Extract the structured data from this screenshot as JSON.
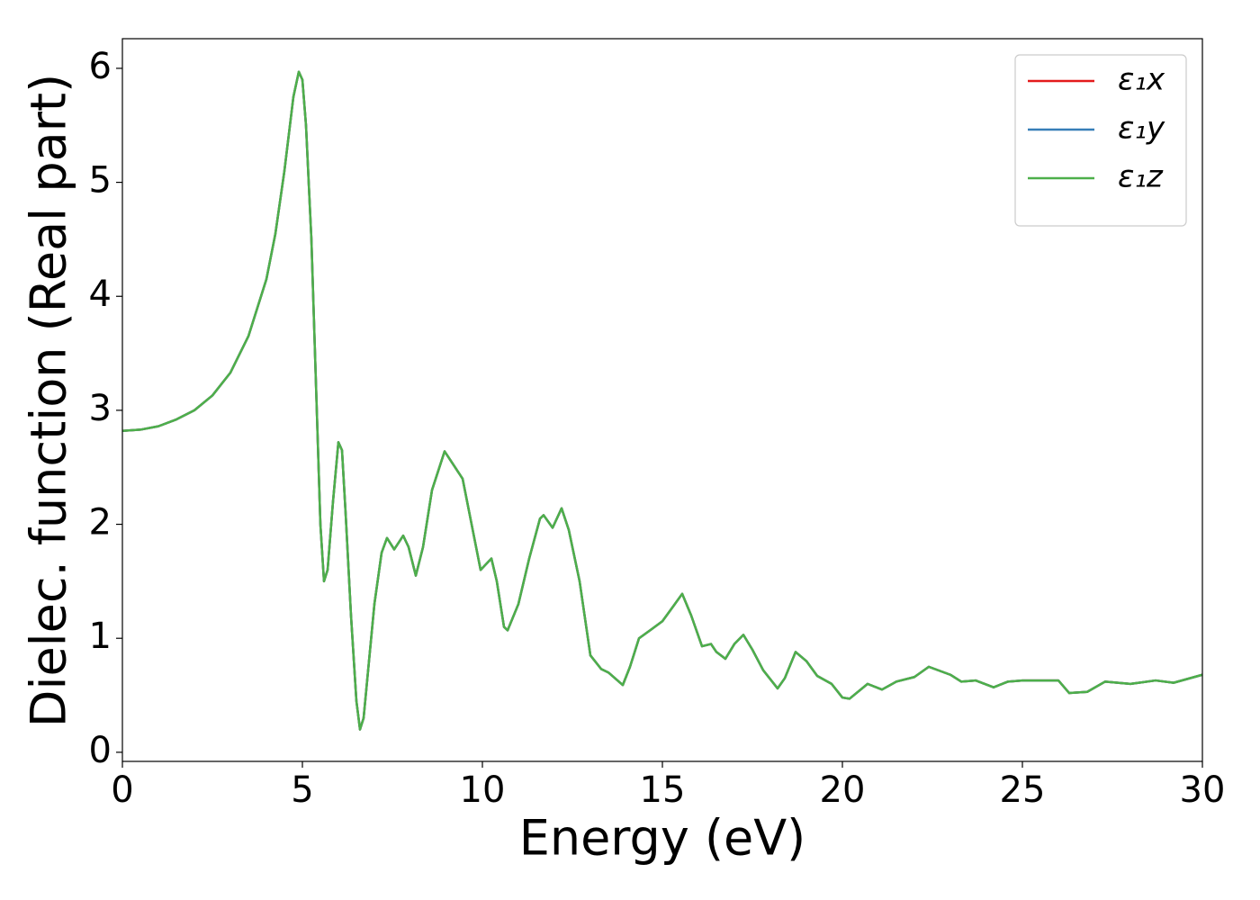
{
  "chart_data": {
    "type": "line",
    "x_label": "Energy (eV)",
    "y_label": "Dielec. function (Real part)",
    "x": [
      0,
      0.5,
      1,
      1.5,
      2,
      2.5,
      3,
      3.5,
      4,
      4.25,
      4.5,
      4.75,
      4.9,
      5.0,
      5.1,
      5.25,
      5.4,
      5.5,
      5.6,
      5.7,
      5.85,
      6.0,
      6.1,
      6.2,
      6.35,
      6.5,
      6.6,
      6.7,
      6.85,
      7.0,
      7.2,
      7.35,
      7.55,
      7.8,
      7.95,
      8.15,
      8.35,
      8.6,
      8.95,
      9.2,
      9.45,
      9.7,
      9.95,
      10.25,
      10.4,
      10.6,
      10.7,
      11.0,
      11.3,
      11.6,
      11.7,
      11.95,
      12.2,
      12.4,
      12.7,
      13.0,
      13.3,
      13.5,
      13.9,
      14.1,
      14.35,
      14.7,
      15.0,
      15.3,
      15.55,
      15.8,
      16.1,
      16.35,
      16.5,
      16.75,
      17.0,
      17.25,
      17.5,
      17.8,
      18.2,
      18.4,
      18.7,
      19.0,
      19.3,
      19.7,
      20.0,
      20.2,
      20.7,
      21.1,
      21.5,
      22.0,
      22.4,
      23.0,
      23.3,
      23.7,
      24.2,
      24.6,
      25.0,
      25.5,
      26.0,
      26.3,
      26.8,
      27.3,
      28.0,
      28.7,
      29.2,
      30
    ],
    "series": [
      {
        "name": "ε₁x",
        "color": "#e41a1c",
        "values": [
          2.82,
          2.83,
          2.86,
          2.92,
          3.0,
          3.13,
          3.33,
          3.65,
          4.15,
          4.55,
          5.1,
          5.75,
          5.97,
          5.9,
          5.5,
          4.5,
          3.0,
          2.0,
          1.5,
          1.6,
          2.2,
          2.72,
          2.65,
          2.1,
          1.2,
          0.45,
          0.2,
          0.3,
          0.8,
          1.3,
          1.75,
          1.88,
          1.78,
          1.9,
          1.8,
          1.55,
          1.8,
          2.3,
          2.64,
          2.52,
          2.4,
          2.0,
          1.6,
          1.7,
          1.5,
          1.1,
          1.07,
          1.3,
          1.7,
          2.05,
          2.08,
          1.97,
          2.14,
          1.95,
          1.5,
          0.85,
          0.73,
          0.7,
          0.59,
          0.75,
          1.0,
          1.08,
          1.15,
          1.28,
          1.39,
          1.2,
          0.93,
          0.95,
          0.88,
          0.82,
          0.95,
          1.03,
          0.9,
          0.72,
          0.56,
          0.65,
          0.88,
          0.8,
          0.67,
          0.6,
          0.48,
          0.47,
          0.6,
          0.55,
          0.62,
          0.66,
          0.75,
          0.68,
          0.62,
          0.63,
          0.57,
          0.62,
          0.63,
          0.63,
          0.63,
          0.52,
          0.53,
          0.62,
          0.6,
          0.63,
          0.61,
          0.68
        ]
      },
      {
        "name": "ε₁y",
        "color": "#377eb8",
        "values": [
          2.82,
          2.83,
          2.86,
          2.92,
          3.0,
          3.13,
          3.33,
          3.65,
          4.15,
          4.55,
          5.1,
          5.75,
          5.97,
          5.9,
          5.5,
          4.5,
          3.0,
          2.0,
          1.5,
          1.6,
          2.2,
          2.72,
          2.65,
          2.1,
          1.2,
          0.45,
          0.2,
          0.3,
          0.8,
          1.3,
          1.75,
          1.88,
          1.78,
          1.9,
          1.8,
          1.55,
          1.8,
          2.3,
          2.64,
          2.52,
          2.4,
          2.0,
          1.6,
          1.7,
          1.5,
          1.1,
          1.07,
          1.3,
          1.7,
          2.05,
          2.08,
          1.97,
          2.14,
          1.95,
          1.5,
          0.85,
          0.73,
          0.7,
          0.59,
          0.75,
          1.0,
          1.08,
          1.15,
          1.28,
          1.39,
          1.2,
          0.93,
          0.95,
          0.88,
          0.82,
          0.95,
          1.03,
          0.9,
          0.72,
          0.56,
          0.65,
          0.88,
          0.8,
          0.67,
          0.6,
          0.48,
          0.47,
          0.6,
          0.55,
          0.62,
          0.66,
          0.75,
          0.68,
          0.62,
          0.63,
          0.57,
          0.62,
          0.63,
          0.63,
          0.63,
          0.52,
          0.53,
          0.62,
          0.6,
          0.63,
          0.61,
          0.68
        ]
      },
      {
        "name": "ε₁z",
        "color": "#4daf4a",
        "values": [
          2.82,
          2.83,
          2.86,
          2.92,
          3.0,
          3.13,
          3.33,
          3.65,
          4.15,
          4.55,
          5.1,
          5.75,
          5.97,
          5.9,
          5.5,
          4.5,
          3.0,
          2.0,
          1.5,
          1.6,
          2.2,
          2.72,
          2.65,
          2.1,
          1.2,
          0.45,
          0.2,
          0.3,
          0.8,
          1.3,
          1.75,
          1.88,
          1.78,
          1.9,
          1.8,
          1.55,
          1.8,
          2.3,
          2.64,
          2.52,
          2.4,
          2.0,
          1.6,
          1.7,
          1.5,
          1.1,
          1.07,
          1.3,
          1.7,
          2.05,
          2.08,
          1.97,
          2.14,
          1.95,
          1.5,
          0.85,
          0.73,
          0.7,
          0.59,
          0.75,
          1.0,
          1.08,
          1.15,
          1.28,
          1.39,
          1.2,
          0.93,
          0.95,
          0.88,
          0.82,
          0.95,
          1.03,
          0.9,
          0.72,
          0.56,
          0.65,
          0.88,
          0.8,
          0.67,
          0.6,
          0.48,
          0.47,
          0.6,
          0.55,
          0.62,
          0.66,
          0.75,
          0.68,
          0.62,
          0.63,
          0.57,
          0.62,
          0.63,
          0.63,
          0.63,
          0.52,
          0.53,
          0.62,
          0.6,
          0.63,
          0.61,
          0.68
        ]
      }
    ],
    "xlim": [
      0,
      30
    ],
    "xticks": [
      0,
      5,
      10,
      15,
      20,
      25,
      30
    ],
    "ylim": [
      -0.08,
      6.26
    ],
    "yticks": [
      0,
      1,
      2,
      3,
      4,
      5,
      6
    ],
    "grid": false,
    "legend": "upper right"
  }
}
